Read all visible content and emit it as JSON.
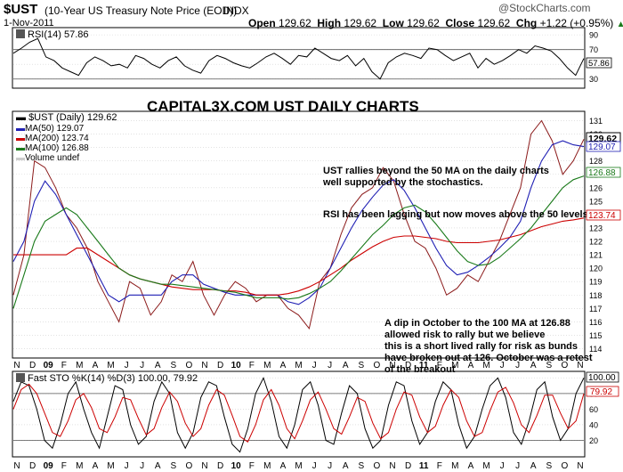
{
  "header": {
    "symbol": "$UST",
    "name": "(10-Year US Treasury Note Price (EOD))",
    "exchange": "INDX",
    "date": "1-Nov-2011",
    "watermark": "@StockCharts.com",
    "open_label": "Open",
    "open": "129.62",
    "high_label": "High",
    "high": "129.62",
    "low_label": "Low",
    "low": "129.62",
    "close_label": "Close",
    "close": "129.62",
    "chg_label": "Chg",
    "chg": "+1.22 (+0.95%)",
    "chg_arrow": "▲"
  },
  "colors": {
    "price": "#8b1a1a",
    "ma50": "#1f1fb4",
    "ma200": "#cc0000",
    "ma100": "#1a7a1a",
    "stoch_d": "#cc0000",
    "grid": "#d0d0d0",
    "annotation": "#000000"
  },
  "chart_data": [
    {
      "type": "line",
      "title": "RSI(14) 57.86",
      "series": [
        {
          "name": "RSI(14)",
          "last": 57.86,
          "values": [
            65,
            72,
            80,
            85,
            60,
            55,
            45,
            40,
            35,
            52,
            60,
            55,
            48,
            50,
            45,
            62,
            58,
            50,
            45,
            55,
            60,
            48,
            42,
            38,
            55,
            62,
            58,
            52,
            48,
            45,
            52,
            60,
            65,
            58,
            50,
            62,
            60,
            72,
            65,
            58,
            55,
            62,
            48,
            58,
            40,
            30,
            52,
            60,
            65,
            62,
            58,
            72,
            70,
            62,
            55,
            60,
            65,
            45,
            58,
            50,
            55,
            62,
            70,
            65,
            75,
            72,
            68,
            58,
            45,
            35,
            57.86
          ]
        }
      ],
      "yticks": [
        90,
        70,
        50,
        30
      ],
      "ylim": [
        20,
        95
      ],
      "reference_lines": [
        70,
        30
      ],
      "last_label": "57.86"
    },
    {
      "type": "line",
      "title": "$UST (Daily) 129.62",
      "x_labels": [
        "N",
        "D",
        "09",
        "F",
        "M",
        "A",
        "M",
        "J",
        "J",
        "A",
        "S",
        "O",
        "N",
        "D",
        "10",
        "F",
        "M",
        "A",
        "M",
        "J",
        "J",
        "A",
        "S",
        "O",
        "N",
        "D",
        "11",
        "F",
        "M",
        "A",
        "M",
        "J",
        "J",
        "A",
        "S",
        "O",
        "N"
      ],
      "yticks": [
        114,
        115,
        116,
        117,
        118,
        119,
        120,
        121,
        122,
        123,
        124,
        125,
        126,
        127,
        128,
        129,
        130,
        131
      ],
      "ylim": [
        113.5,
        131.5
      ],
      "series": [
        {
          "name": "$UST (Daily)",
          "last": 129.62,
          "values": [
            118,
            121,
            128,
            127.5,
            126,
            124,
            123,
            121.5,
            119,
            117.5,
            116,
            119,
            118.5,
            116.5,
            117.5,
            119.5,
            119,
            120.5,
            118,
            116.5,
            118,
            119,
            118.5,
            117.5,
            118,
            118,
            117,
            116.5,
            115.5,
            119,
            120,
            122.5,
            124.5,
            125.5,
            126,
            127.5,
            126.5,
            124,
            122,
            121.5,
            120,
            118,
            118.5,
            119.5,
            119,
            120.5,
            122,
            124,
            126,
            130,
            131,
            129.5,
            127,
            128,
            129.62
          ]
        },
        {
          "name": "MA(50)",
          "last": 129.07,
          "values": [
            120.5,
            122,
            125,
            126.5,
            125.5,
            124,
            122.5,
            121,
            119.5,
            118,
            117.5,
            118,
            118,
            118,
            118,
            119,
            119.5,
            119.5,
            118.8,
            118.5,
            118.2,
            118,
            118,
            118,
            118,
            118,
            117.5,
            117.3,
            117.8,
            118.5,
            120,
            121.5,
            123,
            124.3,
            125.3,
            126.2,
            126.6,
            125.8,
            124.5,
            123,
            121.5,
            120.2,
            119.5,
            119.7,
            120.2,
            120.8,
            121.5,
            122.3,
            123.5,
            126,
            128,
            129.2,
            129.5,
            129.2,
            129.07
          ]
        },
        {
          "name": "MA(200)",
          "last": 123.74,
          "values": [
            121,
            121,
            121,
            121,
            121,
            121,
            121.5,
            121.5,
            121,
            120.5,
            120,
            119.5,
            119.2,
            119,
            118.8,
            118.6,
            118.5,
            118.4,
            118.4,
            118.4,
            118.3,
            118.3,
            118.2,
            118,
            118,
            118,
            118.1,
            118.3,
            118.6,
            119,
            119.5,
            120,
            120.6,
            121.1,
            121.6,
            122,
            122.3,
            122.4,
            122.4,
            122.3,
            122.2,
            122,
            121.9,
            121.9,
            121.9,
            122,
            122.1,
            122.3,
            122.5,
            122.8,
            123.1,
            123.3,
            123.5,
            123.6,
            123.74
          ]
        },
        {
          "name": "MA(100)",
          "last": 126.88,
          "values": [
            117,
            119.5,
            122,
            123.5,
            124,
            124.5,
            124,
            123,
            122,
            121,
            120,
            119.5,
            119.2,
            119,
            118.8,
            118.8,
            118.7,
            118.6,
            118.5,
            118.4,
            118.3,
            118.2,
            118,
            117.8,
            117.8,
            117.8,
            117.7,
            117.8,
            118.1,
            118.5,
            119,
            119.8,
            120.7,
            121.6,
            122.5,
            123.2,
            124,
            124.5,
            124.7,
            124.2,
            123.3,
            122.3,
            121.3,
            120.5,
            120.2,
            120.3,
            120.8,
            121.5,
            122.2,
            123,
            124,
            125,
            126,
            126.6,
            126.88
          ]
        }
      ],
      "extra_legend": "Volume undef",
      "annotations": [
        "CAPITAL3X.COM UST DAILY CHARTS",
        "UST rallies beyond the 50 MA on the daily charts",
        "well supported by the stochastics.",
        "RSI has been lagging but now moves above the 50 levels.",
        "A dip in October to the 100 MA at 126.88",
        "allowed risk to rally but we believe",
        "this is a short lived rally for risk as bunds",
        "have broken out at 126. October was a retest",
        "of the breakout"
      ]
    },
    {
      "type": "line",
      "title": "Fast STO %K(14) %D(3) 100.00, 79.92",
      "series": [
        {
          "name": "%K(14)",
          "last": 100.0,
          "values": [
            70,
            95,
            90,
            60,
            20,
            10,
            40,
            80,
            95,
            60,
            30,
            10,
            50,
            90,
            85,
            40,
            15,
            25,
            70,
            95,
            80,
            30,
            10,
            30,
            75,
            95,
            90,
            50,
            15,
            5,
            35,
            80,
            100,
            70,
            25,
            10,
            40,
            85,
            95,
            65,
            20,
            15,
            55,
            90,
            80,
            35,
            10,
            20,
            65,
            95,
            90,
            45,
            15,
            30,
            70,
            95,
            85,
            40,
            10,
            25,
            60,
            90,
            100,
            75,
            30,
            15,
            45,
            85,
            95,
            50,
            20,
            35,
            80,
            100
          ]
        },
        {
          "name": "%D(3)",
          "last": 79.92,
          "values": [
            60,
            85,
            92,
            80,
            55,
            30,
            25,
            45,
            72,
            80,
            62,
            35,
            30,
            50,
            75,
            72,
            48,
            27,
            35,
            62,
            82,
            70,
            42,
            25,
            35,
            65,
            85,
            78,
            52,
            25,
            18,
            40,
            72,
            85,
            65,
            35,
            22,
            45,
            72,
            82,
            60,
            35,
            28,
            50,
            75,
            70,
            42,
            22,
            30,
            60,
            82,
            78,
            50,
            30,
            38,
            65,
            85,
            75,
            45,
            25,
            30,
            58,
            82,
            88,
            68,
            40,
            30,
            52,
            78,
            78,
            55,
            35,
            45,
            79.92
          ]
        }
      ],
      "x_labels": [
        "N",
        "D",
        "09",
        "F",
        "M",
        "A",
        "M",
        "J",
        "J",
        "A",
        "S",
        "O",
        "N",
        "D",
        "10",
        "F",
        "M",
        "A",
        "M",
        "J",
        "J",
        "A",
        "S",
        "O",
        "N",
        "D",
        "11",
        "F",
        "M",
        "A",
        "M",
        "J",
        "J",
        "A",
        "S",
        "O",
        "N"
      ],
      "yticks": [
        100,
        80,
        60,
        40,
        20
      ],
      "ylim": [
        0,
        105
      ],
      "reference_lines": [
        80,
        20
      ],
      "last_labels": [
        "100.00",
        "79.92"
      ]
    }
  ]
}
